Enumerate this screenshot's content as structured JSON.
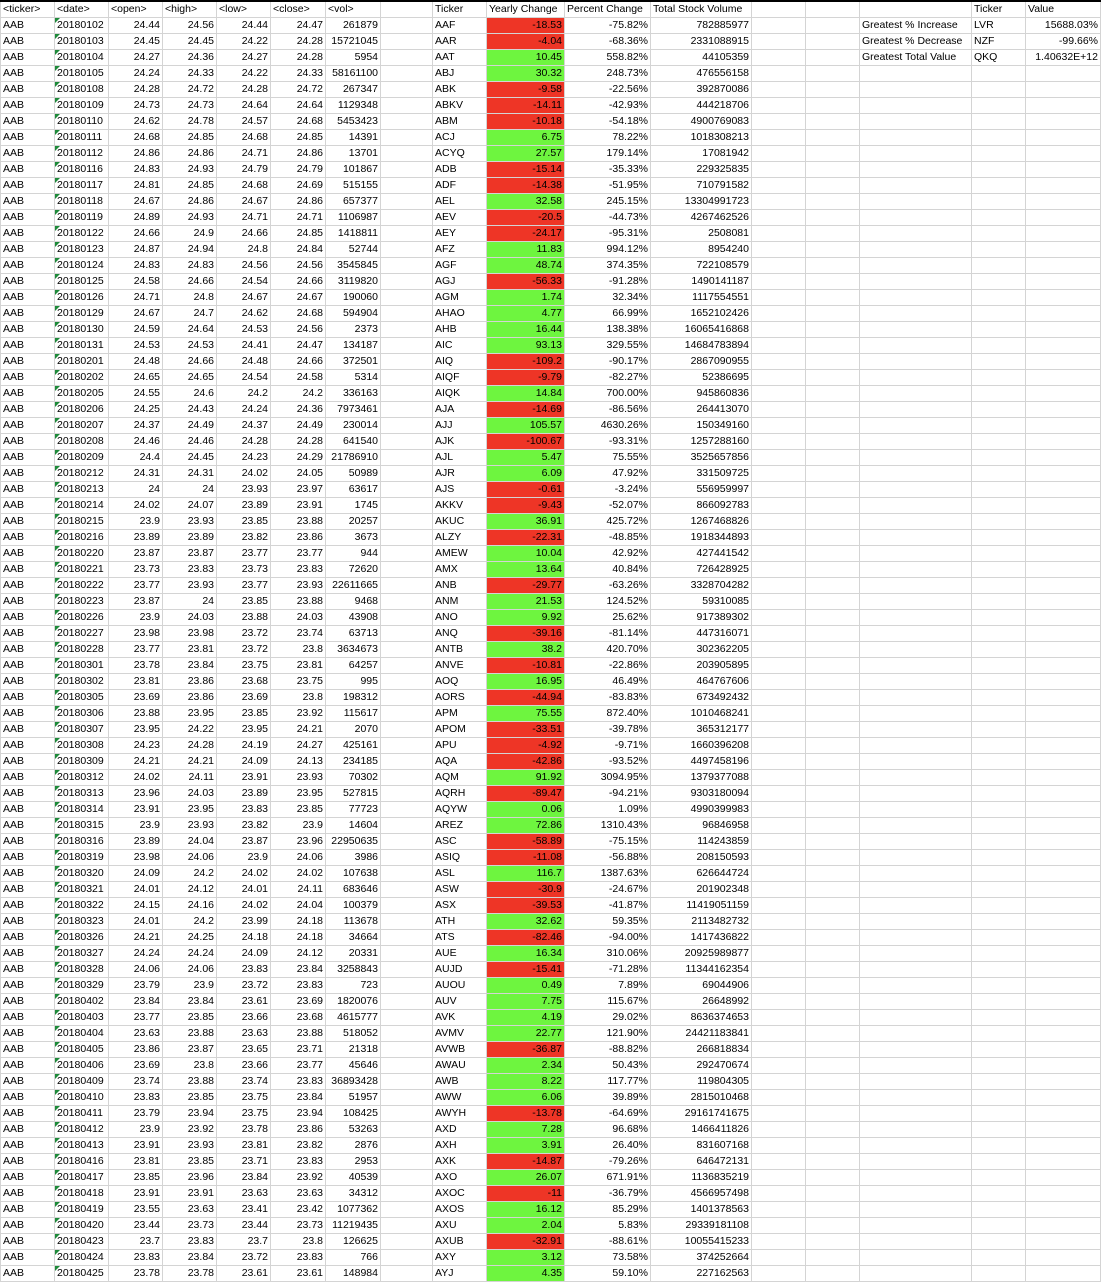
{
  "left_headers": [
    "<ticker>",
    "<date>",
    "<open>",
    "<high>",
    "<low>",
    "<close>",
    "<vol>"
  ],
  "left_ticker": "AAB",
  "daily_rows": [
    [
      "20180102",
      "24.44",
      "24.56",
      "24.44",
      "24.47",
      "261879"
    ],
    [
      "20180103",
      "24.45",
      "24.45",
      "24.22",
      "24.28",
      "15721045"
    ],
    [
      "20180104",
      "24.27",
      "24.36",
      "24.27",
      "24.28",
      "5954"
    ],
    [
      "20180105",
      "24.24",
      "24.33",
      "24.22",
      "24.33",
      "58161100"
    ],
    [
      "20180108",
      "24.28",
      "24.72",
      "24.28",
      "24.72",
      "267347"
    ],
    [
      "20180109",
      "24.73",
      "24.73",
      "24.64",
      "24.64",
      "1129348"
    ],
    [
      "20180110",
      "24.62",
      "24.78",
      "24.57",
      "24.68",
      "5453423"
    ],
    [
      "20180111",
      "24.68",
      "24.85",
      "24.68",
      "24.85",
      "14391"
    ],
    [
      "20180112",
      "24.86",
      "24.86",
      "24.71",
      "24.86",
      "13701"
    ],
    [
      "20180116",
      "24.83",
      "24.93",
      "24.79",
      "24.79",
      "101867"
    ],
    [
      "20180117",
      "24.81",
      "24.85",
      "24.68",
      "24.69",
      "515155"
    ],
    [
      "20180118",
      "24.67",
      "24.86",
      "24.67",
      "24.86",
      "657377"
    ],
    [
      "20180119",
      "24.89",
      "24.93",
      "24.71",
      "24.71",
      "1106987"
    ],
    [
      "20180122",
      "24.66",
      "24.9",
      "24.66",
      "24.85",
      "1418811"
    ],
    [
      "20180123",
      "24.87",
      "24.94",
      "24.8",
      "24.84",
      "52744"
    ],
    [
      "20180124",
      "24.83",
      "24.83",
      "24.56",
      "24.56",
      "3545845"
    ],
    [
      "20180125",
      "24.58",
      "24.66",
      "24.54",
      "24.66",
      "3119820"
    ],
    [
      "20180126",
      "24.71",
      "24.8",
      "24.67",
      "24.67",
      "190060"
    ],
    [
      "20180129",
      "24.67",
      "24.7",
      "24.62",
      "24.68",
      "594904"
    ],
    [
      "20180130",
      "24.59",
      "24.64",
      "24.53",
      "24.56",
      "2373"
    ],
    [
      "20180131",
      "24.53",
      "24.53",
      "24.41",
      "24.47",
      "134187"
    ],
    [
      "20180201",
      "24.48",
      "24.66",
      "24.48",
      "24.66",
      "372501"
    ],
    [
      "20180202",
      "24.65",
      "24.65",
      "24.54",
      "24.58",
      "5314"
    ],
    [
      "20180205",
      "24.55",
      "24.6",
      "24.2",
      "24.2",
      "336163"
    ],
    [
      "20180206",
      "24.25",
      "24.43",
      "24.24",
      "24.36",
      "7973461"
    ],
    [
      "20180207",
      "24.37",
      "24.49",
      "24.37",
      "24.49",
      "230014"
    ],
    [
      "20180208",
      "24.46",
      "24.46",
      "24.28",
      "24.28",
      "641540"
    ],
    [
      "20180209",
      "24.4",
      "24.45",
      "24.23",
      "24.29",
      "21786910"
    ],
    [
      "20180212",
      "24.31",
      "24.31",
      "24.02",
      "24.05",
      "50989"
    ],
    [
      "20180213",
      "24",
      "24",
      "23.93",
      "23.97",
      "63617"
    ],
    [
      "20180214",
      "24.02",
      "24.07",
      "23.89",
      "23.91",
      "1745"
    ],
    [
      "20180215",
      "23.9",
      "23.93",
      "23.85",
      "23.88",
      "20257"
    ],
    [
      "20180216",
      "23.89",
      "23.89",
      "23.82",
      "23.86",
      "3673"
    ],
    [
      "20180220",
      "23.87",
      "23.87",
      "23.77",
      "23.77",
      "944"
    ],
    [
      "20180221",
      "23.73",
      "23.83",
      "23.73",
      "23.83",
      "72620"
    ],
    [
      "20180222",
      "23.77",
      "23.93",
      "23.77",
      "23.93",
      "22611665"
    ],
    [
      "20180223",
      "23.87",
      "24",
      "23.85",
      "23.88",
      "9468"
    ],
    [
      "20180226",
      "23.9",
      "24.03",
      "23.88",
      "24.03",
      "43908"
    ],
    [
      "20180227",
      "23.98",
      "23.98",
      "23.72",
      "23.74",
      "63713"
    ],
    [
      "20180228",
      "23.77",
      "23.81",
      "23.72",
      "23.8",
      "3634673"
    ],
    [
      "20180301",
      "23.78",
      "23.84",
      "23.75",
      "23.81",
      "64257"
    ],
    [
      "20180302",
      "23.81",
      "23.86",
      "23.68",
      "23.75",
      "995"
    ],
    [
      "20180305",
      "23.69",
      "23.86",
      "23.69",
      "23.8",
      "198312"
    ],
    [
      "20180306",
      "23.88",
      "23.95",
      "23.85",
      "23.92",
      "115617"
    ],
    [
      "20180307",
      "23.95",
      "24.22",
      "23.95",
      "24.21",
      "2070"
    ],
    [
      "20180308",
      "24.23",
      "24.28",
      "24.19",
      "24.27",
      "425161"
    ],
    [
      "20180309",
      "24.21",
      "24.21",
      "24.09",
      "24.13",
      "234185"
    ],
    [
      "20180312",
      "24.02",
      "24.11",
      "23.91",
      "23.93",
      "70302"
    ],
    [
      "20180313",
      "23.96",
      "24.03",
      "23.89",
      "23.95",
      "527815"
    ],
    [
      "20180314",
      "23.91",
      "23.95",
      "23.83",
      "23.85",
      "77723"
    ],
    [
      "20180315",
      "23.9",
      "23.93",
      "23.82",
      "23.9",
      "14604"
    ],
    [
      "20180316",
      "23.89",
      "24.04",
      "23.87",
      "23.96",
      "22950635"
    ],
    [
      "20180319",
      "23.98",
      "24.06",
      "23.9",
      "24.06",
      "3986"
    ],
    [
      "20180320",
      "24.09",
      "24.2",
      "24.02",
      "24.02",
      "107638"
    ],
    [
      "20180321",
      "24.01",
      "24.12",
      "24.01",
      "24.11",
      "683646"
    ],
    [
      "20180322",
      "24.15",
      "24.16",
      "24.02",
      "24.04",
      "100379"
    ],
    [
      "20180323",
      "24.01",
      "24.2",
      "23.99",
      "24.18",
      "113678"
    ],
    [
      "20180326",
      "24.21",
      "24.25",
      "24.18",
      "24.18",
      "34664"
    ],
    [
      "20180327",
      "24.24",
      "24.24",
      "24.09",
      "24.12",
      "20331"
    ],
    [
      "20180328",
      "24.06",
      "24.06",
      "23.83",
      "23.84",
      "3258843"
    ],
    [
      "20180329",
      "23.79",
      "23.9",
      "23.72",
      "23.83",
      "723"
    ],
    [
      "20180402",
      "23.84",
      "23.84",
      "23.61",
      "23.69",
      "1820076"
    ],
    [
      "20180403",
      "23.77",
      "23.85",
      "23.66",
      "23.68",
      "4615777"
    ],
    [
      "20180404",
      "23.63",
      "23.88",
      "23.63",
      "23.88",
      "518052"
    ],
    [
      "20180405",
      "23.86",
      "23.87",
      "23.65",
      "23.71",
      "21318"
    ],
    [
      "20180406",
      "23.69",
      "23.8",
      "23.66",
      "23.77",
      "45646"
    ],
    [
      "20180409",
      "23.74",
      "23.88",
      "23.74",
      "23.83",
      "36893428"
    ],
    [
      "20180410",
      "23.83",
      "23.85",
      "23.75",
      "23.84",
      "51957"
    ],
    [
      "20180411",
      "23.79",
      "23.94",
      "23.75",
      "23.94",
      "108425"
    ],
    [
      "20180412",
      "23.9",
      "23.92",
      "23.78",
      "23.86",
      "53263"
    ],
    [
      "20180413",
      "23.91",
      "23.93",
      "23.81",
      "23.82",
      "2876"
    ],
    [
      "20180416",
      "23.81",
      "23.85",
      "23.71",
      "23.83",
      "2953"
    ],
    [
      "20180417",
      "23.85",
      "23.96",
      "23.84",
      "23.92",
      "40539"
    ],
    [
      "20180418",
      "23.91",
      "23.91",
      "23.63",
      "23.63",
      "34312"
    ],
    [
      "20180419",
      "23.55",
      "23.63",
      "23.41",
      "23.42",
      "1077362"
    ],
    [
      "20180420",
      "23.44",
      "23.73",
      "23.44",
      "23.73",
      "11219435"
    ],
    [
      "20180423",
      "23.7",
      "23.83",
      "23.7",
      "23.8",
      "126625"
    ],
    [
      "20180424",
      "23.83",
      "23.84",
      "23.72",
      "23.83",
      "766"
    ],
    [
      "20180425",
      "23.78",
      "23.78",
      "23.61",
      "23.61",
      "148984"
    ]
  ],
  "summary_headers": [
    "Ticker",
    "Yearly Change",
    "Percent Change",
    "Total Stock Volume"
  ],
  "summary_rows": [
    [
      "AAF",
      "-18.53",
      "-75.82%",
      "782885977"
    ],
    [
      "AAR",
      "-4.04",
      "-68.36%",
      "2331088915"
    ],
    [
      "AAT",
      "10.45",
      "558.82%",
      "44105359"
    ],
    [
      "ABJ",
      "30.32",
      "248.73%",
      "476556158"
    ],
    [
      "ABK",
      "-9.58",
      "-22.56%",
      "392870086"
    ],
    [
      "ABKV",
      "-14.11",
      "-42.93%",
      "444218706"
    ],
    [
      "ABM",
      "-10.18",
      "-54.18%",
      "4900769083"
    ],
    [
      "ACJ",
      "6.75",
      "78.22%",
      "1018308213"
    ],
    [
      "ACYQ",
      "27.57",
      "179.14%",
      "17081942"
    ],
    [
      "ADB",
      "-15.14",
      "-35.33%",
      "229325835"
    ],
    [
      "ADF",
      "-14.38",
      "-51.95%",
      "710791582"
    ],
    [
      "AEL",
      "32.58",
      "245.15%",
      "13304991723"
    ],
    [
      "AEV",
      "-20.5",
      "-44.73%",
      "4267462526"
    ],
    [
      "AEY",
      "-24.17",
      "-95.31%",
      "2508081"
    ],
    [
      "AFZ",
      "11.83",
      "994.12%",
      "8954240"
    ],
    [
      "AGF",
      "48.74",
      "374.35%",
      "722108579"
    ],
    [
      "AGJ",
      "-56.33",
      "-91.28%",
      "1490141187"
    ],
    [
      "AGM",
      "1.74",
      "32.34%",
      "1117554551"
    ],
    [
      "AHAO",
      "4.77",
      "66.99%",
      "1652102426"
    ],
    [
      "AHB",
      "16.44",
      "138.38%",
      "16065416868"
    ],
    [
      "AIC",
      "93.13",
      "329.55%",
      "14684783894"
    ],
    [
      "AIQ",
      "-109.2",
      "-90.17%",
      "2867090955"
    ],
    [
      "AIQF",
      "-9.79",
      "-82.27%",
      "52386695"
    ],
    [
      "AIQK",
      "14.84",
      "700.00%",
      "945860836"
    ],
    [
      "AJA",
      "-14.69",
      "-86.56%",
      "264413070"
    ],
    [
      "AJJ",
      "105.57",
      "4630.26%",
      "150349160"
    ],
    [
      "AJK",
      "-100.67",
      "-93.31%",
      "1257288160"
    ],
    [
      "AJL",
      "5.47",
      "75.55%",
      "3525657856"
    ],
    [
      "AJR",
      "6.09",
      "47.92%",
      "331509725"
    ],
    [
      "AJS",
      "-0.61",
      "-3.24%",
      "556959997"
    ],
    [
      "AKKV",
      "-9.43",
      "-52.07%",
      "866092783"
    ],
    [
      "AKUC",
      "36.91",
      "425.72%",
      "1267468826"
    ],
    [
      "ALZY",
      "-22.31",
      "-48.85%",
      "1918344893"
    ],
    [
      "AMEW",
      "10.04",
      "42.92%",
      "427441542"
    ],
    [
      "AMX",
      "13.64",
      "40.84%",
      "726428925"
    ],
    [
      "ANB",
      "-29.77",
      "-63.26%",
      "3328704282"
    ],
    [
      "ANM",
      "21.53",
      "124.52%",
      "59310085"
    ],
    [
      "ANO",
      "9.92",
      "25.62%",
      "917389302"
    ],
    [
      "ANQ",
      "-39.16",
      "-81.14%",
      "447316071"
    ],
    [
      "ANTB",
      "38.2",
      "420.70%",
      "302362205"
    ],
    [
      "ANVE",
      "-10.81",
      "-22.86%",
      "203905895"
    ],
    [
      "AOQ",
      "16.95",
      "46.49%",
      "464767606"
    ],
    [
      "AORS",
      "-44.94",
      "-83.83%",
      "673492432"
    ],
    [
      "APM",
      "75.55",
      "872.40%",
      "1010468241"
    ],
    [
      "APOM",
      "-33.51",
      "-39.78%",
      "365312177"
    ],
    [
      "APU",
      "-4.92",
      "-9.71%",
      "1660396208"
    ],
    [
      "AQA",
      "-42.86",
      "-93.52%",
      "4497458196"
    ],
    [
      "AQM",
      "91.92",
      "3094.95%",
      "1379377088"
    ],
    [
      "AQRH",
      "-89.47",
      "-94.21%",
      "9303180094"
    ],
    [
      "AQYW",
      "0.06",
      "1.09%",
      "4990399983"
    ],
    [
      "AREZ",
      "72.86",
      "1310.43%",
      "96846958"
    ],
    [
      "ASC",
      "-58.89",
      "-75.15%",
      "114243859"
    ],
    [
      "ASIQ",
      "-11.08",
      "-56.88%",
      "208150593"
    ],
    [
      "ASL",
      "116.7",
      "1387.63%",
      "626644724"
    ],
    [
      "ASW",
      "-30.9",
      "-24.67%",
      "201902348"
    ],
    [
      "ASX",
      "-39.53",
      "-41.87%",
      "11419051159"
    ],
    [
      "ATH",
      "32.62",
      "59.35%",
      "2113482732"
    ],
    [
      "ATS",
      "-82.46",
      "-94.00%",
      "1417436822"
    ],
    [
      "AUE",
      "16.34",
      "310.06%",
      "20925989877"
    ],
    [
      "AUJD",
      "-15.41",
      "-71.28%",
      "11344162354"
    ],
    [
      "AUOU",
      "0.49",
      "7.89%",
      "69044906"
    ],
    [
      "AUV",
      "7.75",
      "115.67%",
      "26648992"
    ],
    [
      "AVK",
      "4.19",
      "29.02%",
      "8636374653"
    ],
    [
      "AVMV",
      "22.77",
      "121.90%",
      "24421183841"
    ],
    [
      "AVWB",
      "-36.87",
      "-88.82%",
      "266818834"
    ],
    [
      "AWAU",
      "2.34",
      "50.43%",
      "292470674"
    ],
    [
      "AWB",
      "8.22",
      "117.77%",
      "119804305"
    ],
    [
      "AWW",
      "6.06",
      "39.89%",
      "2815010468"
    ],
    [
      "AWYH",
      "-13.78",
      "-64.69%",
      "29161741675"
    ],
    [
      "AXD",
      "7.28",
      "96.68%",
      "1466411826"
    ],
    [
      "AXH",
      "3.91",
      "26.40%",
      "831607168"
    ],
    [
      "AXK",
      "-14.87",
      "-79.26%",
      "646472131"
    ],
    [
      "AXO",
      "26.07",
      "671.91%",
      "1136835219"
    ],
    [
      "AXOC",
      "-11",
      "-36.79%",
      "4566957498"
    ],
    [
      "AXOS",
      "16.12",
      "85.29%",
      "1401378563"
    ],
    [
      "AXU",
      "2.04",
      "5.83%",
      "29339181108"
    ],
    [
      "AXUB",
      "-32.91",
      "-88.61%",
      "10055415233"
    ],
    [
      "AXY",
      "3.12",
      "73.58%",
      "374252664"
    ],
    [
      "AYJ",
      "4.35",
      "59.10%",
      "227162563"
    ]
  ],
  "greatest_headers": [
    "Ticker",
    "Value"
  ],
  "greatest_rows": [
    [
      "Greatest % Increase",
      "LVR",
      "15688.03%"
    ],
    [
      "Greatest % Decrease",
      "NZF",
      "-99.66%"
    ],
    [
      "Greatest Total Value",
      "QKQ",
      "1.40632E+12"
    ]
  ],
  "colors": {
    "positive": "#6ef53f",
    "negative": "#ee3526",
    "gridline": "#d4d4d4"
  }
}
